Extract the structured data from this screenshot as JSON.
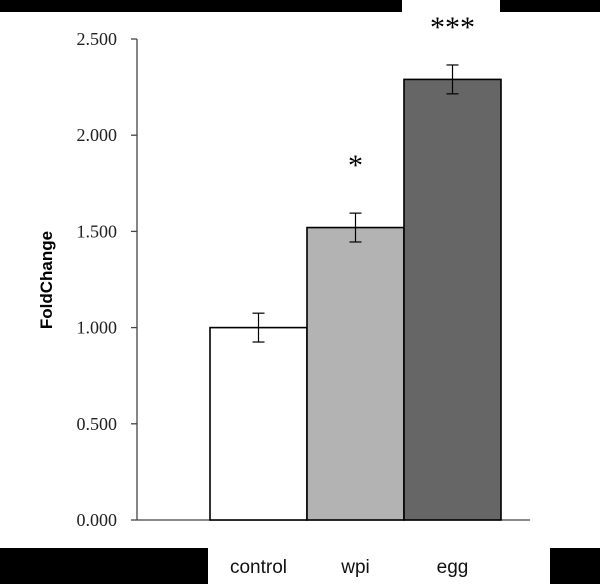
{
  "chart_data": {
    "type": "bar",
    "title": "",
    "xlabel": "",
    "ylabel": "FoldChange",
    "ylim": [
      0,
      2.5
    ],
    "yticks": [
      0,
      0.5,
      1,
      1.5,
      2,
      2.5
    ],
    "ytick_labels": [
      "0.000",
      "0.500",
      "1.000",
      "1.500",
      "2.000",
      "2.500"
    ],
    "categories": [
      "control",
      "wpi",
      "egg"
    ],
    "values": [
      1.0,
      1.52,
      2.29
    ],
    "errors": [
      0.075,
      0.075,
      0.075
    ],
    "significance": [
      "",
      "*",
      "***"
    ],
    "bar_colors": [
      "#ffffff",
      "#b3b3b3",
      "#666666"
    ]
  }
}
